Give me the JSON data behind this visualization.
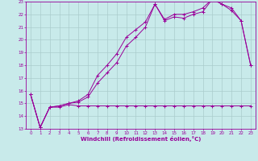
{
  "xlabel": "Windchill (Refroidissement éolien,°C)",
  "bg_color": "#c8eaea",
  "line_color": "#990099",
  "grid_color": "#aacccc",
  "xlim": [
    -0.5,
    23.5
  ],
  "ylim": [
    13,
    23
  ],
  "yticks": [
    13,
    14,
    15,
    16,
    17,
    18,
    19,
    20,
    21,
    22,
    23
  ],
  "xticks": [
    0,
    1,
    2,
    3,
    4,
    5,
    6,
    7,
    8,
    9,
    10,
    11,
    12,
    13,
    14,
    15,
    16,
    17,
    18,
    19,
    20,
    21,
    22,
    23
  ],
  "line1_x": [
    0,
    1,
    2,
    3,
    4,
    5,
    6,
    7,
    8,
    9,
    10,
    11,
    12,
    13,
    14,
    15,
    16,
    17,
    18,
    19,
    20,
    21,
    22,
    23
  ],
  "line1_y": [
    15.7,
    13.1,
    14.7,
    14.7,
    14.9,
    14.8,
    14.8,
    14.8,
    14.8,
    14.8,
    14.8,
    14.8,
    14.8,
    14.8,
    14.8,
    14.8,
    14.8,
    14.8,
    14.8,
    14.8,
    14.8,
    14.8,
    14.8,
    14.8
  ],
  "line2_x": [
    0,
    1,
    2,
    3,
    4,
    5,
    6,
    7,
    8,
    9,
    10,
    11,
    12,
    13,
    14,
    15,
    16,
    17,
    18,
    19,
    20,
    21,
    22,
    23
  ],
  "line2_y": [
    15.7,
    13.1,
    14.7,
    14.8,
    15.0,
    15.1,
    15.5,
    16.6,
    17.4,
    18.2,
    19.5,
    20.2,
    21.0,
    22.8,
    21.5,
    21.8,
    21.7,
    22.0,
    22.2,
    23.2,
    22.8,
    22.3,
    21.5,
    18.0
  ],
  "line3_x": [
    0,
    1,
    2,
    3,
    4,
    5,
    6,
    7,
    8,
    9,
    10,
    11,
    12,
    13,
    14,
    15,
    16,
    17,
    18,
    19,
    20,
    21,
    22,
    23
  ],
  "line3_y": [
    15.7,
    13.1,
    14.7,
    14.8,
    15.0,
    15.2,
    15.7,
    17.2,
    18.0,
    18.9,
    20.2,
    20.8,
    21.4,
    22.8,
    21.6,
    22.0,
    22.0,
    22.2,
    22.5,
    23.2,
    22.8,
    22.5,
    21.5,
    18.0
  ]
}
